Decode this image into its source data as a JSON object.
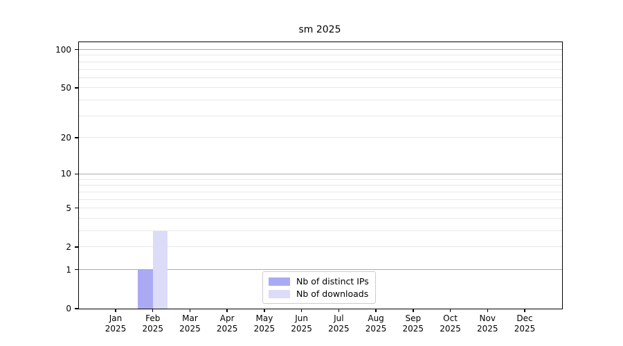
{
  "chart_data": {
    "type": "bar",
    "title": "sm 2025",
    "categories": [
      "Jan 2025",
      "Feb 2025",
      "Mar 2025",
      "Apr 2025",
      "May 2025",
      "Jun 2025",
      "Jul 2025",
      "Aug 2025",
      "Sep 2025",
      "Oct 2025",
      "Nov 2025",
      "Dec 2025"
    ],
    "series": [
      {
        "name": "Nb of distinct IPs",
        "color": "#aaaaf4",
        "values": [
          0,
          1,
          0,
          0,
          0,
          0,
          0,
          0,
          0,
          0,
          0,
          0
        ]
      },
      {
        "name": "Nb of downloads",
        "color": "#dcdcf8",
        "values": [
          0,
          3,
          0,
          0,
          0,
          0,
          0,
          0,
          0,
          0,
          0,
          0
        ]
      }
    ],
    "xlabel": "",
    "ylabel": "",
    "yscale": "log1p",
    "yticks": [
      0,
      1,
      2,
      5,
      10,
      20,
      50,
      100
    ],
    "major_gridline_values": [
      1,
      10,
      100
    ],
    "minor_gridline_values": [
      2,
      3,
      4,
      5,
      6,
      7,
      8,
      9,
      20,
      30,
      40,
      50,
      60,
      70,
      80,
      90
    ],
    "ylim": [
      0,
      114
    ],
    "grid": "horizontal",
    "legend_position": "lower center",
    "colors": {
      "major_grid": "#ababab",
      "minor_grid": "#e7e7e7",
      "spine": "#000000",
      "background": "#ffffff"
    }
  }
}
